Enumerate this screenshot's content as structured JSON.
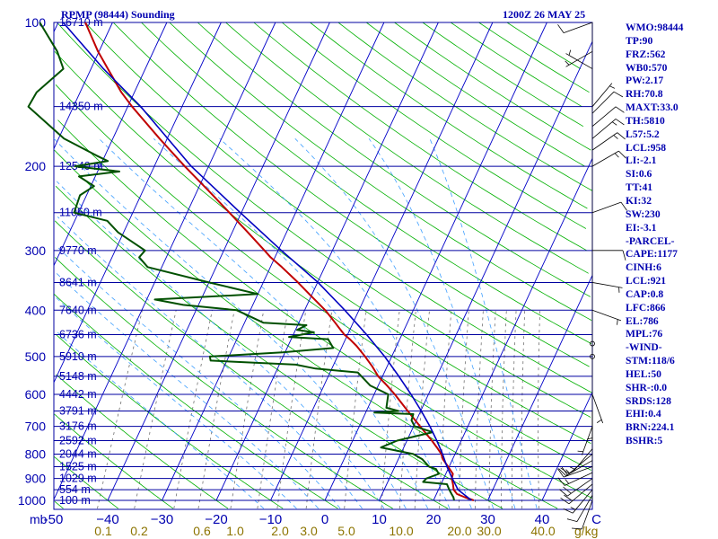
{
  "header": {
    "station_title": "RPMP (98444) Sounding",
    "datetime": "1200Z 26 MAY 25"
  },
  "params": [
    "WMO:98444",
    "TP:90",
    "FRZ:562",
    "WB0:570",
    "PW:2.17",
    "RH:70.8",
    "MAXT:33.0",
    "TH:5810",
    "L57:5.2",
    "LCL:958",
    "LI:-2.1",
    "SI:0.6",
    "TT:41",
    "KI:32",
    "SW:230",
    "EI:-3.1",
    "-PARCEL-",
    "CAPE:1177",
    "CINH:6",
    "LCL:921",
    "CAP:0.8",
    "LFC:866",
    "EL:786",
    "MPL:76",
    "-WIND-",
    "STM:118/6",
    "HEL:50",
    "SHR-:0.0",
    "SRDS:128",
    "EHI:0.4",
    "BRN:224.1",
    "BSHR:5"
  ],
  "colors": {
    "isobar": "#0000a0",
    "isotherm": "#0000c8",
    "dry_adiabat": "#00b000",
    "moist_adiabat": "#40a0ff",
    "mixing_ratio": "#707070",
    "temperature": "#c00000",
    "dewpoint": "#005000",
    "parcel": "#0000c0",
    "axis_text": "#0000b0",
    "mixing_text": "#8c7400"
  },
  "chart_data": {
    "type": "line",
    "title": "RPMP (98444) Sounding",
    "pressure_axis": {
      "unit": "mb",
      "range": [
        1000,
        100
      ],
      "scale": "log",
      "tick_labels": [
        "100",
        "200",
        "300",
        "400",
        "500",
        "600",
        "700",
        "800",
        "900",
        "1000"
      ]
    },
    "temperature_axis": {
      "range": [
        -50,
        50
      ],
      "skewed": true,
      "tick_labels": [
        {
          "t": -50,
          "label": "-50"
        },
        {
          "t": -40,
          "label": "−40"
        },
        {
          "t": -30,
          "label": "−30"
        },
        {
          "t": -20,
          "label": "−20"
        },
        {
          "t": -10,
          "label": "−10"
        },
        {
          "t": 0,
          "label": "0"
        },
        {
          "t": 10,
          "label": "10"
        },
        {
          "t": 20,
          "label": "20"
        },
        {
          "t": 30,
          "label": "30"
        },
        {
          "t": 40,
          "label": "40"
        },
        {
          "t": 50,
          "label": "C"
        }
      ],
      "left_label": "mb"
    },
    "mixing_ratio_axis": {
      "unit": "g/kg",
      "labels": [
        "0.1",
        "0.2",
        "0.6",
        "1.0",
        "2.0",
        "3.0",
        "5.0",
        "10.0",
        "20.0",
        "30.0",
        "40.0"
      ]
    },
    "height_labels": [
      {
        "p": 100,
        "label": "16710 m"
      },
      {
        "p": 150,
        "label": "14350 m"
      },
      {
        "p": 200,
        "label": "12540 m"
      },
      {
        "p": 250,
        "label": "11050 m"
      },
      {
        "p": 300,
        "label": "9770 m"
      },
      {
        "p": 350,
        "label": "8641 m"
      },
      {
        "p": 400,
        "label": "7640 m"
      },
      {
        "p": 450,
        "label": "6736 m"
      },
      {
        "p": 500,
        "label": "5910 m"
      },
      {
        "p": 550,
        "label": "5148 m"
      },
      {
        "p": 600,
        "label": "4442 m"
      },
      {
        "p": 650,
        "label": "3791 m"
      },
      {
        "p": 700,
        "label": "3176 m"
      },
      {
        "p": 750,
        "label": "2592 m"
      },
      {
        "p": 800,
        "label": "2044 m"
      },
      {
        "p": 850,
        "label": "1525 m"
      },
      {
        "p": 900,
        "label": "1029 m"
      },
      {
        "p": 950,
        "label": "554 m"
      },
      {
        "p": 1000,
        "label": "100 m"
      }
    ],
    "series": [
      {
        "key": "temperature",
        "points": [
          [
            1000,
            27.4
          ],
          [
            985,
            25.5
          ],
          [
            970,
            23.8
          ],
          [
            950,
            22.8
          ],
          [
            925,
            22.2
          ],
          [
            900,
            21.5
          ],
          [
            880,
            21.3
          ],
          [
            850,
            19.8
          ],
          [
            820,
            18.2
          ],
          [
            800,
            17.5
          ],
          [
            775,
            16.1
          ],
          [
            750,
            14.6
          ],
          [
            700,
            11.2
          ],
          [
            650,
            7.6
          ],
          [
            600,
            3.8
          ],
          [
            575,
            1.6
          ],
          [
            550,
            -0.8
          ],
          [
            525,
            -2.7
          ],
          [
            500,
            -4.9
          ],
          [
            475,
            -7.4
          ],
          [
            460,
            -9.2
          ],
          [
            450,
            -10.6
          ],
          [
            435,
            -12.2
          ],
          [
            425,
            -13.3
          ],
          [
            400,
            -16.2
          ],
          [
            375,
            -19.8
          ],
          [
            350,
            -23.6
          ],
          [
            325,
            -27.9
          ],
          [
            310,
            -30.8
          ],
          [
            300,
            -32.5
          ],
          [
            275,
            -37.1
          ],
          [
            250,
            -42.2
          ],
          [
            225,
            -47.9
          ],
          [
            200,
            -54.4
          ],
          [
            175,
            -61.4
          ],
          [
            150,
            -69.2
          ],
          [
            140,
            -72.4
          ],
          [
            125,
            -76.9
          ],
          [
            115,
            -80.2
          ],
          [
            100,
            -85.0
          ]
        ]
      },
      {
        "key": "dewpoint",
        "points": [
          [
            1000,
            23.8
          ],
          [
            985,
            23.4
          ],
          [
            970,
            22.8
          ],
          [
            950,
            22.0
          ],
          [
            925,
            21.1
          ],
          [
            915,
            16.5
          ],
          [
            900,
            16.8
          ],
          [
            880,
            18.7
          ],
          [
            860,
            17.8
          ],
          [
            850,
            16.3
          ],
          [
            820,
            14.4
          ],
          [
            800,
            12.3
          ],
          [
            775,
            5.8
          ],
          [
            750,
            8.2
          ],
          [
            720,
            14.0
          ],
          [
            700,
            10.2
          ],
          [
            680,
            9.1
          ],
          [
            660,
            8.9
          ],
          [
            655,
            1.6
          ],
          [
            650,
            5.9
          ],
          [
            640,
            3.4
          ],
          [
            600,
            2.6
          ],
          [
            575,
            -1.5
          ],
          [
            540,
            -4.9
          ],
          [
            530,
            -13.0
          ],
          [
            520,
            -17.0
          ],
          [
            510,
            -33.0
          ],
          [
            500,
            -33.5
          ],
          [
            490,
            -20.5
          ],
          [
            480,
            -11.5
          ],
          [
            460,
            -13.2
          ],
          [
            455,
            -20.6
          ],
          [
            445,
            -16.4
          ],
          [
            440,
            -19.7
          ],
          [
            430,
            -18.4
          ],
          [
            425,
            -26.5
          ],
          [
            400,
            -32.5
          ],
          [
            390,
            -42.8
          ],
          [
            380,
            -48.5
          ],
          [
            370,
            -30.0
          ],
          [
            350,
            -40.0
          ],
          [
            325,
            -52.6
          ],
          [
            310,
            -55.0
          ],
          [
            300,
            -54.5
          ],
          [
            275,
            -61.0
          ],
          [
            260,
            -64.0
          ],
          [
            250,
            -70.8
          ],
          [
            230,
            -71.2
          ],
          [
            220,
            -69.4
          ],
          [
            210,
            -73.0
          ],
          [
            205,
            -66.0
          ],
          [
            200,
            -74.6
          ],
          [
            195,
            -69.0
          ],
          [
            190,
            -71.5
          ],
          [
            175,
            -79.0
          ],
          [
            150,
            -88.3
          ],
          [
            140,
            -88.0
          ],
          [
            125,
            -85.1
          ],
          [
            115,
            -87.7
          ],
          [
            100,
            -93.4
          ]
        ]
      },
      {
        "key": "parcel",
        "points": [
          [
            1000,
            27.0
          ],
          [
            950,
            23.6
          ],
          [
            900,
            21.6
          ],
          [
            850,
            19.6
          ],
          [
            800,
            17.7
          ],
          [
            750,
            15.5
          ],
          [
            700,
            13.0
          ],
          [
            650,
            10.1
          ],
          [
            600,
            6.8
          ],
          [
            550,
            3.0
          ],
          [
            500,
            -1.3
          ],
          [
            450,
            -6.5
          ],
          [
            400,
            -12.6
          ],
          [
            350,
            -19.9
          ],
          [
            300,
            -29.4
          ],
          [
            250,
            -40.2
          ],
          [
            200,
            -53.2
          ],
          [
            150,
            -67.6
          ],
          [
            125,
            -77.7
          ],
          [
            100,
            -89.1
          ]
        ]
      }
    ],
    "wind_barbs": [
      {
        "p": 1000,
        "dir": 200,
        "kt": 10
      },
      {
        "p": 975,
        "dir": 210,
        "kt": 10
      },
      {
        "p": 950,
        "dir": 220,
        "kt": 15
      },
      {
        "p": 925,
        "dir": 230,
        "kt": 20
      },
      {
        "p": 900,
        "dir": 235,
        "kt": 20
      },
      {
        "p": 875,
        "dir": 245,
        "kt": 15
      },
      {
        "p": 850,
        "dir": 250,
        "kt": 20
      },
      {
        "p": 825,
        "dir": 240,
        "kt": 15
      },
      {
        "p": 800,
        "dir": 230,
        "kt": 10
      },
      {
        "p": 780,
        "dir": 220,
        "kt": 5
      },
      {
        "p": 700,
        "dir": 200,
        "kt": 5
      },
      {
        "p": 650,
        "dir": 180,
        "kt": 5
      },
      {
        "p": 600,
        "dir": 160,
        "kt": 5
      },
      {
        "p": 500,
        "dir": 0,
        "kt": 0
      },
      {
        "p": 470,
        "dir": 0,
        "kt": 0
      },
      {
        "p": 400,
        "dir": 110,
        "kt": 5
      },
      {
        "p": 350,
        "dir": 100,
        "kt": 5
      },
      {
        "p": 300,
        "dir": 90,
        "kt": 10
      },
      {
        "p": 250,
        "dir": 70,
        "kt": 10
      },
      {
        "p": 200,
        "dir": 60,
        "kt": 15
      },
      {
        "p": 185,
        "dir": 55,
        "kt": 15
      },
      {
        "p": 175,
        "dir": 50,
        "kt": 15
      },
      {
        "p": 165,
        "dir": 50,
        "kt": 10
      },
      {
        "p": 155,
        "dir": 45,
        "kt": 10
      },
      {
        "p": 150,
        "dir": 40,
        "kt": 5
      },
      {
        "p": 125,
        "dir": 300,
        "kt": 5
      },
      {
        "p": 115,
        "dir": 240,
        "kt": 5
      },
      {
        "p": 100,
        "dir": 250,
        "kt": 10
      }
    ]
  }
}
